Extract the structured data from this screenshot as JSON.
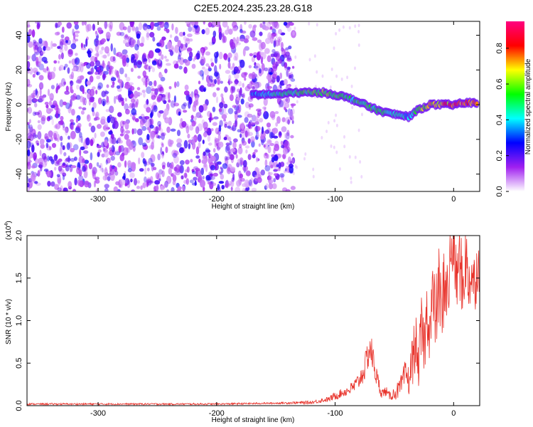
{
  "title": "C2E5.2024.235.23.28.G18",
  "colors": {
    "snr_line": "#e8322a",
    "background": "#ffffff",
    "colormap": [
      "#ffffff",
      "#a020f0",
      "#0000ff",
      "#00ffff",
      "#00ff00",
      "#ffff00",
      "#ff0000",
      "#ff0080"
    ]
  },
  "chart_data": [
    {
      "type": "heatmap",
      "title": "C2E5.2024.235.23.28.G18",
      "xlabel": "Height of straight line (km)",
      "ylabel": "Frequency (Hz)",
      "xlim": [
        -360,
        22
      ],
      "ylim": [
        -50,
        48
      ],
      "xticks": [
        -300,
        -200,
        -100,
        0
      ],
      "yticks": [
        -40,
        -20,
        0,
        20,
        40
      ],
      "colorbar": {
        "label": "Normalized spectral amplitude",
        "range": [
          0,
          0.95
        ],
        "ticks": [
          0.0,
          0.2,
          0.4,
          0.6,
          0.8
        ]
      },
      "noise_region_x": [
        -360,
        -135
      ],
      "ridge": {
        "x": [
          -170,
          -150,
          -130,
          -110,
          -95,
          -85,
          -75,
          -65,
          -55,
          -45,
          -38,
          -30,
          -20,
          -10,
          0,
          10,
          20
        ],
        "frequency": [
          6,
          6,
          7,
          7,
          5,
          3,
          0,
          -3,
          -5,
          -6,
          -7,
          -3,
          0,
          0,
          0,
          1,
          1
        ],
        "amplitude": [
          0.35,
          0.45,
          0.55,
          0.6,
          0.55,
          0.5,
          0.55,
          0.5,
          0.5,
          0.45,
          0.4,
          0.6,
          0.7,
          0.75,
          0.8,
          0.85,
          0.8
        ]
      }
    },
    {
      "type": "line",
      "xlabel": "Height of straight line (km)",
      "ylabel": "SNR (10 * v/v)",
      "y_multiplier": "(x10",
      "y_multiplier_exp": "4",
      "y_multiplier_close": ")",
      "xlim": [
        -360,
        22
      ],
      "ylim": [
        0,
        2.0
      ],
      "xticks": [
        -300,
        -200,
        -100,
        0
      ],
      "yticks": [
        0.0,
        0.5,
        1.0,
        1.5,
        2.0
      ],
      "series": [
        {
          "x": [
            -360,
            -300,
            -200,
            -150,
            -120,
            -105,
            -100,
            -95,
            -90,
            -85,
            -80,
            -75,
            -72,
            -70,
            -68,
            -65,
            -62,
            -60,
            -57,
            -55,
            -50,
            -45,
            -40,
            -38,
            -35,
            -32,
            -30,
            -27,
            -25,
            -22,
            -20,
            -18,
            -15,
            -12,
            -10,
            -8,
            -5,
            -3,
            0,
            2,
            5,
            8,
            10,
            12,
            15,
            18,
            20,
            22
          ],
          "y": [
            0.02,
            0.02,
            0.02,
            0.03,
            0.04,
            0.08,
            0.12,
            0.15,
            0.18,
            0.22,
            0.3,
            0.45,
            0.65,
            0.7,
            0.55,
            0.35,
            0.2,
            0.15,
            0.18,
            0.12,
            0.15,
            0.22,
            0.4,
            0.3,
            0.55,
            0.8,
            0.45,
            0.95,
            0.7,
            1.2,
            0.9,
            1.3,
            1.1,
            1.5,
            1.0,
            1.6,
            1.3,
            1.7,
            2.0,
            1.5,
            1.75,
            1.4,
            1.85,
            1.5,
            1.6,
            1.45,
            1.7,
            1.65
          ],
          "spread": [
            0.01,
            0.01,
            0.01,
            0.01,
            0.02,
            0.03,
            0.05,
            0.05,
            0.06,
            0.08,
            0.1,
            0.15,
            0.2,
            0.2,
            0.18,
            0.12,
            0.08,
            0.06,
            0.06,
            0.05,
            0.08,
            0.12,
            0.2,
            0.18,
            0.3,
            0.35,
            0.25,
            0.4,
            0.35,
            0.45,
            0.4,
            0.45,
            0.45,
            0.5,
            0.45,
            0.5,
            0.45,
            0.5,
            0.4,
            0.45,
            0.45,
            0.45,
            0.45,
            0.4,
            0.4,
            0.35,
            0.35,
            0.3
          ]
        }
      ]
    }
  ]
}
